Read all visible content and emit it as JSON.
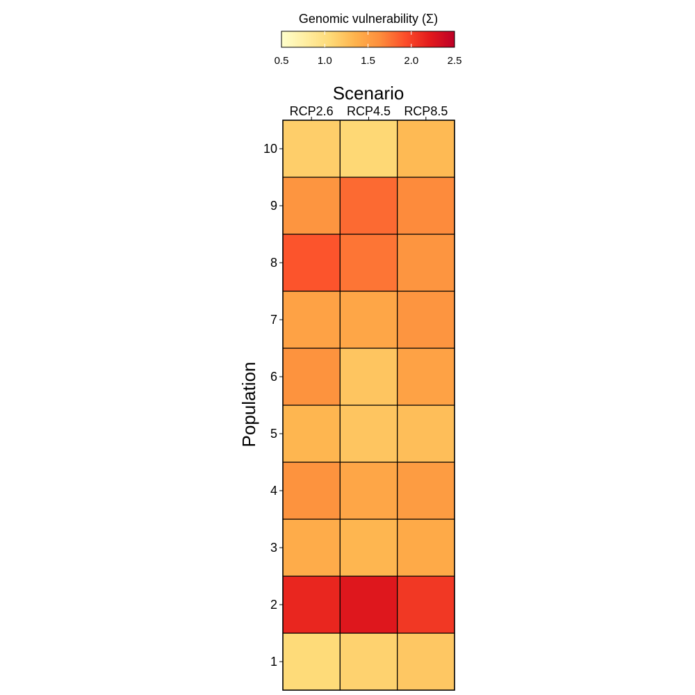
{
  "chart_data": {
    "type": "heatmap",
    "title": "",
    "xlabel": "Scenario",
    "ylabel": "Population",
    "x_axis_position": "top",
    "x_categories": [
      "RCP2.6",
      "RCP4.5",
      "RCP8.5"
    ],
    "y_categories": [
      "1",
      "2",
      "3",
      "4",
      "5",
      "6",
      "7",
      "8",
      "9",
      "10"
    ],
    "values": [
      [
        1.05,
        1.12,
        1.2
      ],
      [
        2.15,
        2.25,
        2.05
      ],
      [
        1.4,
        1.33,
        1.42
      ],
      [
        1.6,
        1.45,
        1.53
      ],
      [
        1.33,
        1.22,
        1.27
      ],
      [
        1.6,
        1.22,
        1.48
      ],
      [
        1.48,
        1.45,
        1.58
      ],
      [
        1.9,
        1.75,
        1.58
      ],
      [
        1.58,
        1.8,
        1.65
      ],
      [
        1.15,
        1.08,
        1.3
      ]
    ],
    "legend": {
      "title": "Genomic vulnerability (Σ)",
      "position": "top",
      "range": [
        0.5,
        2.5
      ],
      "ticks": [
        "0.5",
        "1.0",
        "1.5",
        "2.0",
        "2.5"
      ],
      "colors": [
        "#FFFFCC",
        "#FFEDA0",
        "#FED976",
        "#FEB24C",
        "#FD8D3C",
        "#FC4E2A",
        "#E31A1C",
        "#BD0026"
      ]
    },
    "grid": false
  }
}
